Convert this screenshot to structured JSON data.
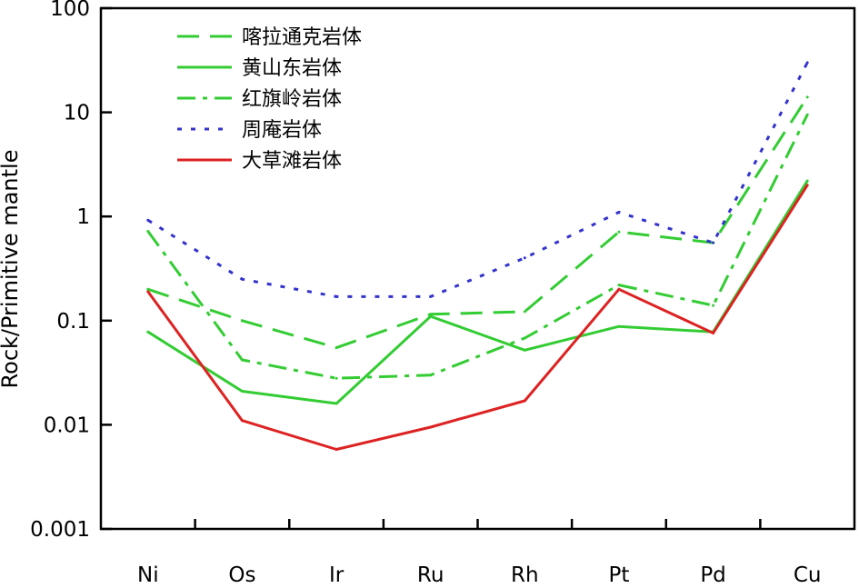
{
  "chart_data": {
    "type": "line",
    "title": "",
    "xlabel": "",
    "ylabel": "Rock/Primitive mantle",
    "yscale": "log",
    "ylim": [
      0.001,
      100
    ],
    "yticks": [
      "100",
      "10",
      "1",
      "0.1",
      "0.01",
      "0.001"
    ],
    "categories": [
      "Ni",
      "Os",
      "Ir",
      "Ru",
      "Rh",
      "Pt",
      "Pd",
      "Cu"
    ],
    "grid": false,
    "legend_position": "top-left",
    "series": [
      {
        "name": "喀拉通克岩体",
        "style": "dashed",
        "color": "#33cc33",
        "values": [
          0.2,
          0.1,
          0.055,
          0.115,
          0.122,
          0.71,
          0.56,
          14
        ]
      },
      {
        "name": "黄山东岩体",
        "style": "solid",
        "color": "#33cc33",
        "values": [
          0.078,
          0.021,
          0.016,
          0.11,
          0.052,
          0.088,
          0.078,
          2.2
        ]
      },
      {
        "name": "红旗岭岩体",
        "style": "dashdot",
        "color": "#33cc33",
        "values": [
          0.72,
          0.042,
          0.028,
          0.03,
          0.068,
          0.22,
          0.14,
          9.5
        ]
      },
      {
        "name": "周庵岩体",
        "style": "dotted",
        "color": "#3333cc",
        "values": [
          0.92,
          0.25,
          0.17,
          0.17,
          0.4,
          1.1,
          0.56,
          30
        ]
      },
      {
        "name": "大草滩岩体",
        "style": "solid",
        "color": "#dd2222",
        "values": [
          0.19,
          0.011,
          0.0058,
          0.0095,
          0.017,
          0.2,
          0.076,
          2.0
        ]
      }
    ]
  }
}
